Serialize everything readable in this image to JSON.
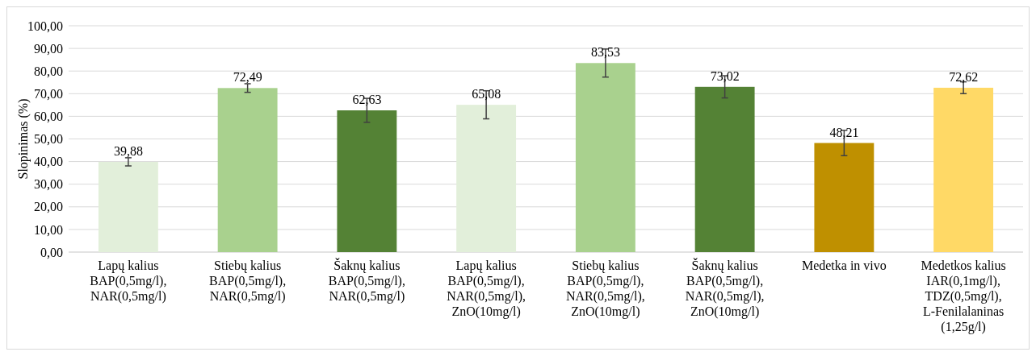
{
  "chart_data": {
    "type": "bar",
    "ylabel": "Slopinimas (%)",
    "categories": [
      "Lapų kalius\nBAP(0,5mg/l),\nNAR(0,5mg/l)",
      "Stiebų kalius\nBAP(0,5mg/l),\nNAR(0,5mg/l)",
      "Šaknų kalius\nBAP(0,5mg/l),\nNAR(0,5mg/l)",
      "Lapų kalius\nBAP(0,5mg/l),\nNAR(0,5mg/l),\nZnO(10mg/l)",
      "Stiebų kalius\nBAP(0,5mg/l),\nNAR(0,5mg/l),\nZnO(10mg/l)",
      "Šaknų kalius\nBAP(0,5mg/l),\nNAR(0,5mg/l),\nZnO(10mg/l)",
      "Medetka in vivo",
      "Medetkos kalius\nIAR(0,1mg/l),\nTDZ(0,5mg/l),\nL-Fenilalaninas\n(1,25g/l)"
    ],
    "values": [
      39.88,
      72.49,
      62.63,
      65.08,
      83.53,
      73.02,
      48.21,
      72.62
    ],
    "value_labels": [
      "39,88",
      "72,49",
      "62,63",
      "65,08",
      "83,53",
      "73,02",
      "48,21",
      "72,62"
    ],
    "errors": [
      1.8,
      1.9,
      5.3,
      6.2,
      6.2,
      4.9,
      5.6,
      2.6
    ],
    "colors": [
      "#e2efda",
      "#a9d18e",
      "#548235",
      "#e2efda",
      "#a9d18e",
      "#548235",
      "#bf9000",
      "#ffd966"
    ],
    "ylim": [
      0,
      100
    ],
    "yticks": [
      {
        "value": 0,
        "label": "0,00"
      },
      {
        "value": 10,
        "label": "10,00"
      },
      {
        "value": 20,
        "label": "20,00"
      },
      {
        "value": 30,
        "label": "30,00"
      },
      {
        "value": 40,
        "label": "40,00"
      },
      {
        "value": 50,
        "label": "50,00"
      },
      {
        "value": 60,
        "label": "60,00"
      },
      {
        "value": 70,
        "label": "70,00"
      },
      {
        "value": 80,
        "label": "80,00"
      },
      {
        "value": 90,
        "label": "90,00"
      },
      {
        "value": 100,
        "label": "100,00"
      }
    ],
    "grid": "y"
  }
}
